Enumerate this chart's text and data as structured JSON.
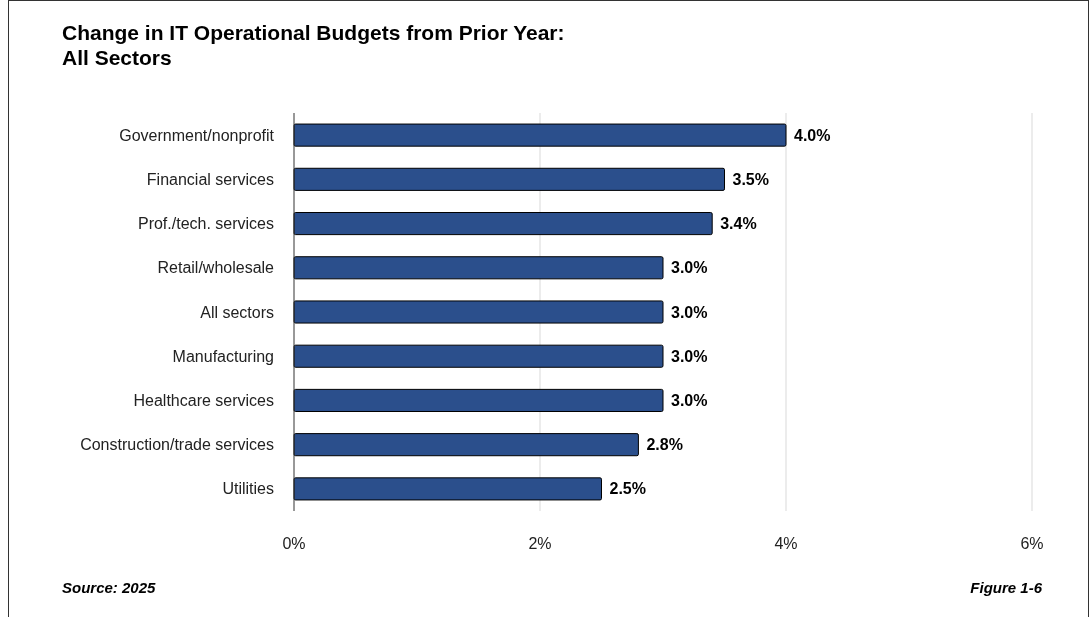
{
  "chart_data": {
    "type": "bar",
    "orientation": "horizontal",
    "title": "Change in IT Operational Budgets from Prior Year:\nAll Sectors",
    "categories": [
      "Government/nonprofit",
      "Financial services",
      "Prof./tech. services",
      "Retail/wholesale",
      "All sectors",
      "Manufacturing",
      "Healthcare services",
      "Construction/trade services",
      "Utilities"
    ],
    "values": [
      4.0,
      3.5,
      3.4,
      3.0,
      3.0,
      3.0,
      3.0,
      2.8,
      2.5
    ],
    "value_labels": [
      "4.0%",
      "3.5%",
      "3.4%",
      "3.0%",
      "3.0%",
      "3.0%",
      "3.0%",
      "2.8%",
      "2.5%"
    ],
    "color": "#2b4f8c",
    "xlim": [
      0,
      6
    ],
    "xticks": [
      {
        "value": 0,
        "label": "0%"
      },
      {
        "value": 2,
        "label": "2%"
      },
      {
        "value": 4,
        "label": "4%"
      },
      {
        "value": 6,
        "label": "6%"
      }
    ],
    "grid": "x",
    "annotations": [
      "Source: 2025",
      "Figure 1-6"
    ]
  }
}
